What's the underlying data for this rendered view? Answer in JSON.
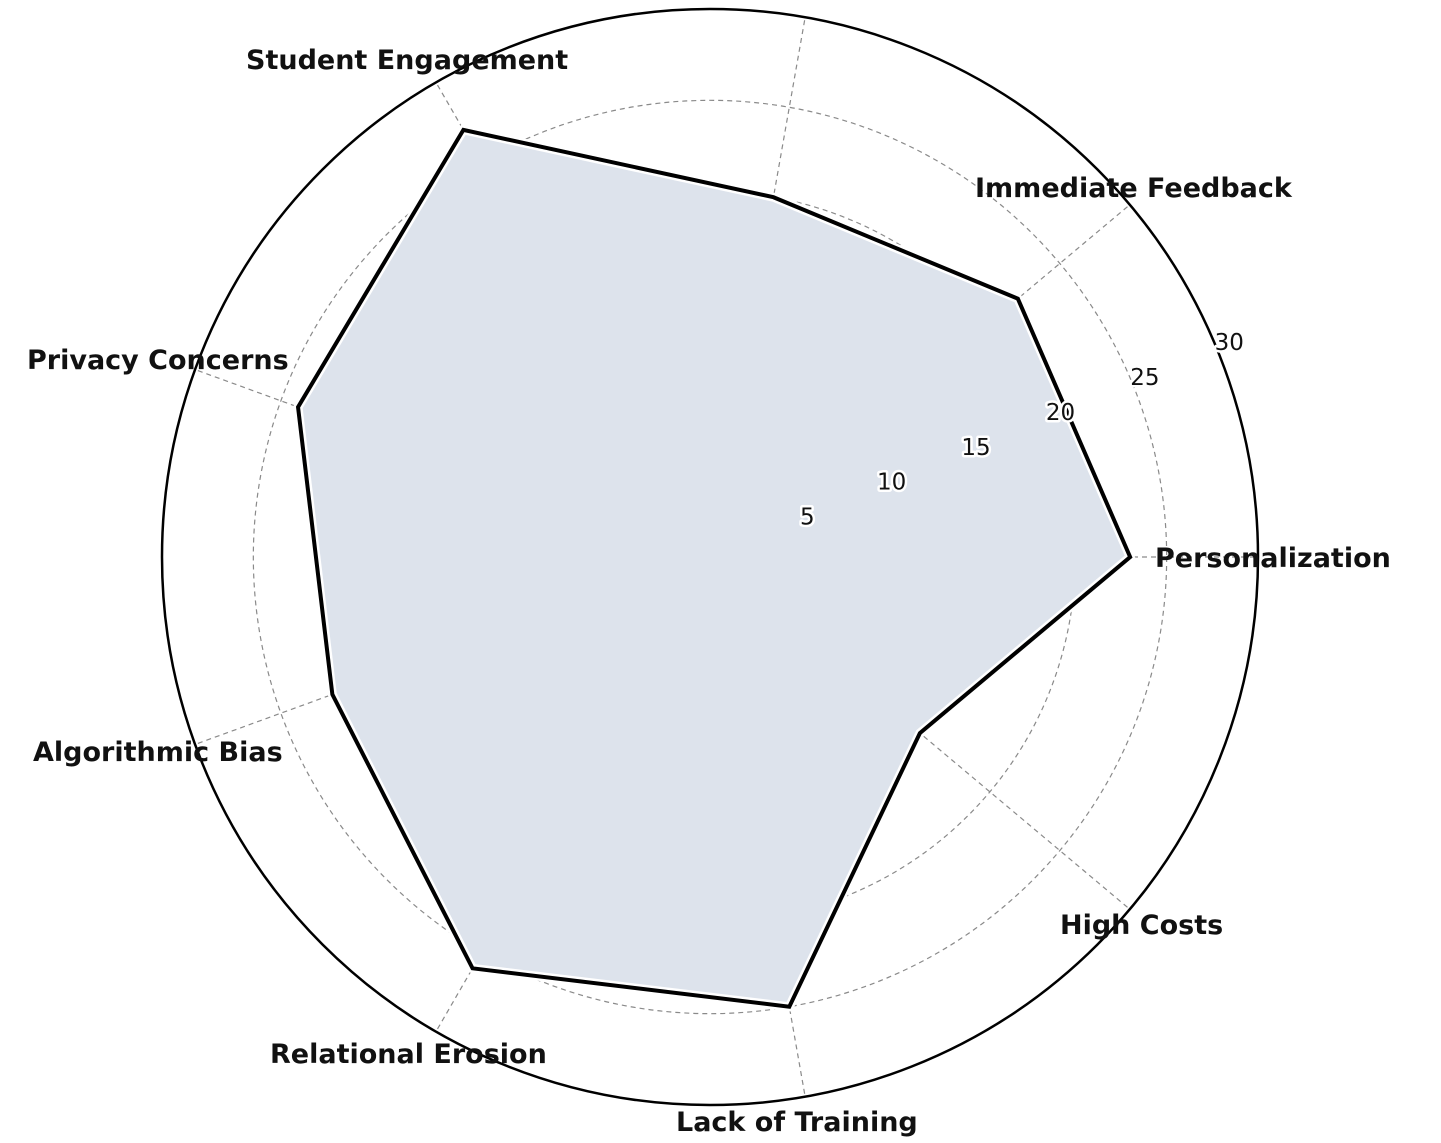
{
  "chart_data": {
    "type": "radar",
    "categories": [
      "Personalization",
      "Immediate Feedback",
      "",
      "Student Engagement",
      "Privacy Concerns",
      "Algorithmic Bias",
      "Relational Erosion",
      "Lack of Training",
      "High Costs"
    ],
    "values": [
      23,
      22,
      20,
      27,
      24,
      22,
      26,
      25,
      15
    ],
    "rlim": [
      0,
      30
    ],
    "rticks": [
      5,
      10,
      15,
      20,
      25,
      30
    ],
    "rtick_labels": [
      "5",
      "10",
      "15",
      "20",
      "25",
      "30"
    ],
    "grid": true,
    "colors": {
      "fill": "#dde3ec",
      "line": "#000000",
      "grid": "#8a8a8a"
    }
  }
}
